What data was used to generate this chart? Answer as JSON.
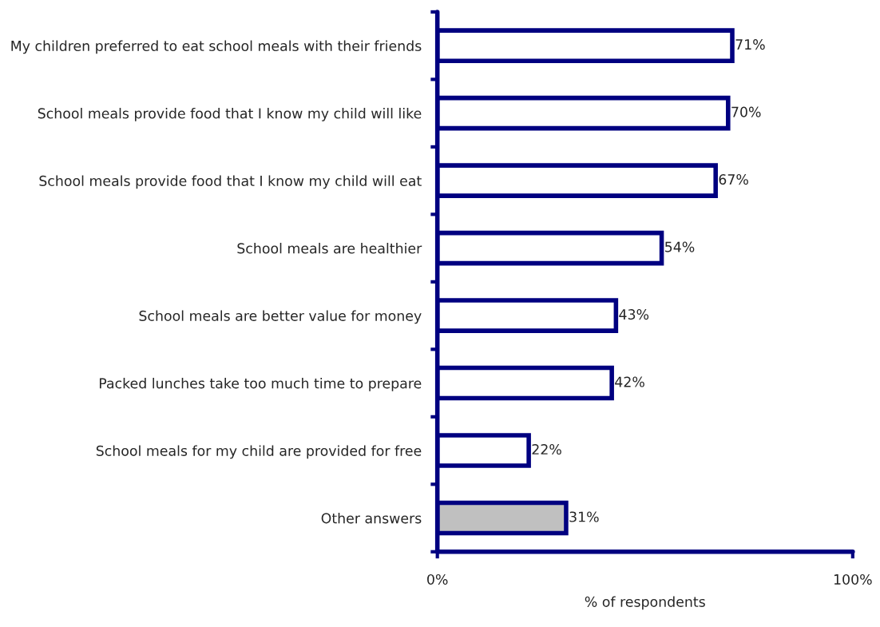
{
  "chart_data": {
    "type": "bar",
    "orientation": "horizontal",
    "categories": [
      "My children preferred to eat school meals with their friends",
      "School meals provide food that I know my child will like",
      "School meals provide food that I know my child will eat",
      "School meals are healthier",
      "School meals are better value for money",
      "Packed lunches take too much time to prepare",
      "School meals for my child are provided for free",
      "Other answers"
    ],
    "values": [
      71,
      70,
      67,
      54,
      43,
      42,
      22,
      31
    ],
    "colors": [
      "#ffffff",
      "#ffffff",
      "#ffffff",
      "#ffffff",
      "#ffffff",
      "#ffffff",
      "#ffffff",
      "#c0c0c0"
    ],
    "value_labels": [
      "71%",
      "70%",
      "67%",
      "54%",
      "43%",
      "42%",
      "22%",
      "31%"
    ],
    "xlim": [
      0,
      100
    ],
    "xticks": [
      {
        "value": 0,
        "label": "0%"
      },
      {
        "value": 100,
        "label": "100%"
      }
    ],
    "xlabel": "% of respondents",
    "grid": false,
    "legend": false
  }
}
